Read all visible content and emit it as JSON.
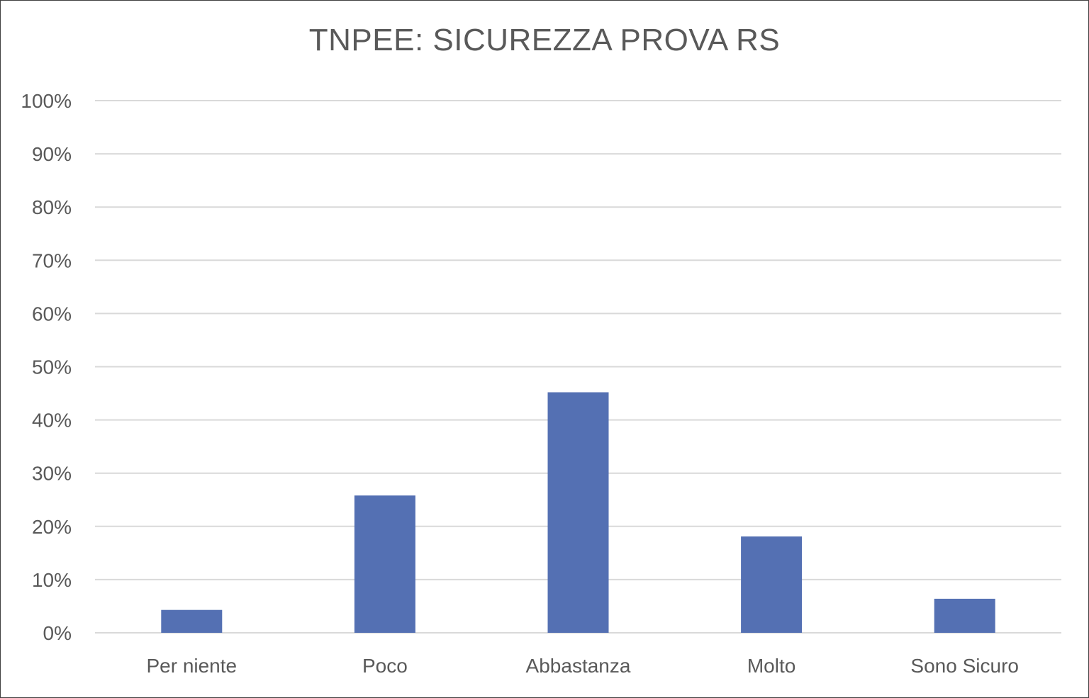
{
  "chart_data": {
    "type": "bar",
    "title": "TNPEE: SICUREZZA PROVA RS",
    "categories": [
      "Per niente",
      "Poco",
      "Abbastanza",
      "Molto",
      "Sono Sicuro"
    ],
    "values": [
      4.3,
      25.8,
      45.2,
      18.1,
      6.4
    ],
    "xlabel": "",
    "ylabel": "",
    "ylim": [
      0,
      100
    ],
    "y_ticks": [
      "0%",
      "10%",
      "20%",
      "30%",
      "40%",
      "50%",
      "60%",
      "70%",
      "80%",
      "90%",
      "100%"
    ],
    "grid": true,
    "legend": "none",
    "bar_color": "#5470b3",
    "grid_color": "#d9d9d9"
  }
}
